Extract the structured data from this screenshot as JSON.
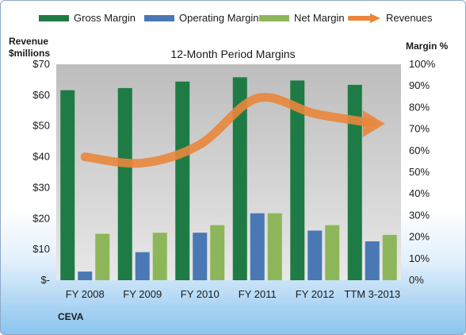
{
  "chart_data": {
    "type": "bar",
    "title": "12-Month Period Margins",
    "categories": [
      "FY 2008",
      "FY 2009",
      "FY 2010",
      "FY 2011",
      "FY 2012",
      "TTM 3-2013"
    ],
    "series": [
      {
        "name": "Gross Margin",
        "axis": "right",
        "color": "#1e7b45",
        "values": [
          88,
          89,
          92,
          94,
          92.5,
          90.5
        ]
      },
      {
        "name": "Operating Margin",
        "axis": "right",
        "color": "#4a78b4",
        "values": [
          4,
          13,
          22,
          31,
          23,
          18
        ]
      },
      {
        "name": "Net Margin",
        "axis": "right",
        "color": "#8db65a",
        "values": [
          21.5,
          22,
          25.5,
          31,
          25.5,
          21
        ]
      }
    ],
    "line": {
      "name": "Revenues",
      "axis": "left",
      "color": "#e9863c",
      "values": [
        40,
        38,
        44,
        59,
        54,
        51
      ]
    },
    "left_axis": {
      "label_line1": "Revenue",
      "label_line2": "$millions",
      "ticks": [
        "$-",
        "$10",
        "$20",
        "$30",
        "$40",
        "$50",
        "$60",
        "$70"
      ],
      "range": [
        0,
        70
      ]
    },
    "right_axis": {
      "label": "Margin %",
      "ticks": [
        "0%",
        "10%",
        "20%",
        "30%",
        "40%",
        "50%",
        "60%",
        "70%",
        "80%",
        "90%",
        "100%"
      ],
      "range": [
        0,
        100
      ]
    },
    "legend_position": "top",
    "grid": false
  },
  "footer_label": "CEVA"
}
